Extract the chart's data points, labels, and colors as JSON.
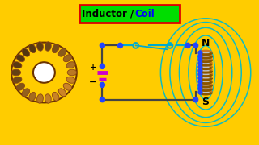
{
  "title_text1": "Inductor / ",
  "title_text2": "Coil",
  "title_color1": "#000000",
  "title_color2": "#0000ff",
  "title_bg": "#00dd00",
  "title_border": "#dd0000",
  "outer_border": "#ffcc00",
  "bg_color": "#ffffff",
  "wire_color": "#444444",
  "dot_color": "#2244ff",
  "switch_color": "#00aacc",
  "battery_color": "#cc00cc",
  "coil_color1": "#cc6600",
  "coil_color2": "#884400",
  "coil_core": "#c0c0c0",
  "field_color": "#00bbcc",
  "N_label": "N",
  "S_label": "S",
  "toroid_outer": "#cd853f",
  "toroid_dark": "#8b4513",
  "border_width": 6
}
